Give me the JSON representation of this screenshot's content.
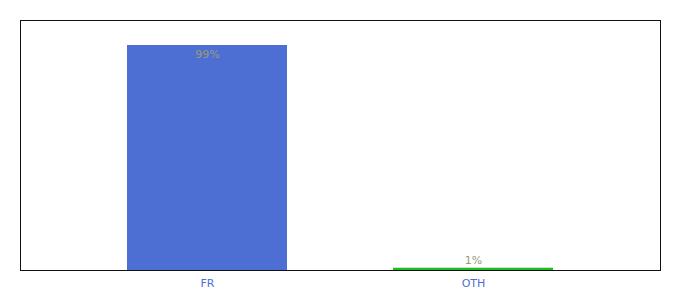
{
  "chart_data": {
    "type": "bar",
    "categories": [
      "FR",
      "OTH"
    ],
    "values": [
      99,
      1
    ],
    "value_labels": [
      "99%",
      "1%"
    ],
    "colors": [
      "#4d6fd4",
      "#22bb22"
    ],
    "ylim": [
      0,
      110
    ],
    "tick_labels": "x",
    "data_labels": true
  }
}
